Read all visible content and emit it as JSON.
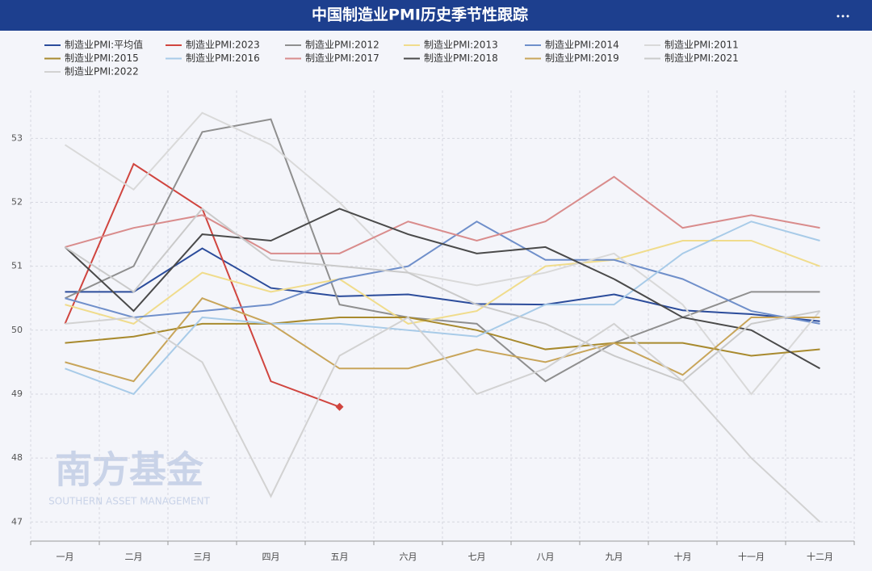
{
  "chart_data": {
    "type": "line",
    "title": "中国制造业PMI历史季节性跟踪",
    "watermark": {
      "name": "南方基金",
      "subtitle": "SOUTHERN ASSET MANAGEMENT"
    },
    "categories": [
      "一月",
      "二月",
      "三月",
      "四月",
      "五月",
      "六月",
      "七月",
      "八月",
      "九月",
      "十月",
      "十一月",
      "十二月"
    ],
    "ylim": [
      46.7,
      53.75
    ],
    "yticks": [
      47,
      48,
      49,
      50,
      51,
      52,
      53
    ],
    "grid": true,
    "series": [
      {
        "name": "制造业PMI:平均值",
        "color": "#2b4c9b",
        "values": [
          50.6,
          50.6,
          51.28,
          50.66,
          50.53,
          50.56,
          50.41,
          50.4,
          50.56,
          50.31,
          50.25,
          50.14
        ]
      },
      {
        "name": "制造业PMI:2023",
        "color": "#d0453f",
        "end_marker": "diamond",
        "values": [
          50.1,
          52.6,
          51.9,
          49.2,
          48.8,
          null,
          null,
          null,
          null,
          null,
          null,
          null
        ]
      },
      {
        "name": "制造业PMI:2012",
        "color": "#8f8f8f",
        "values": [
          50.5,
          51.0,
          53.1,
          53.3,
          50.4,
          50.2,
          50.1,
          49.2,
          49.8,
          50.2,
          50.6,
          50.6
        ]
      },
      {
        "name": "制造业PMI:2013",
        "color": "#f0dc8c",
        "values": [
          50.4,
          50.1,
          50.9,
          50.6,
          50.8,
          50.1,
          50.3,
          51.0,
          51.1,
          51.4,
          51.4,
          51.0
        ]
      },
      {
        "name": "制造业PMI:2014",
        "color": "#6f8fca",
        "values": [
          50.5,
          50.2,
          50.3,
          50.4,
          50.8,
          51.0,
          51.7,
          51.1,
          51.1,
          50.8,
          50.3,
          50.1
        ]
      },
      {
        "name": "制造业PMI:2011",
        "color": "#d9d9d9",
        "values": [
          52.9,
          52.2,
          53.4,
          52.9,
          52.0,
          50.9,
          50.7,
          50.9,
          51.2,
          50.4,
          49.0,
          50.3
        ]
      },
      {
        "name": "制造业PMI:2015",
        "color": "#a88a2e",
        "values": [
          49.8,
          49.9,
          50.1,
          50.1,
          50.2,
          50.2,
          50.0,
          49.7,
          49.8,
          49.8,
          49.6,
          49.7
        ]
      },
      {
        "name": "制造业PMI:2016",
        "color": "#a8cbe8",
        "values": [
          49.4,
          49.0,
          50.2,
          50.1,
          50.1,
          50.0,
          49.9,
          50.4,
          50.4,
          51.2,
          51.7,
          51.4
        ]
      },
      {
        "name": "制造业PMI:2017",
        "color": "#d98c8c",
        "values": [
          51.3,
          51.6,
          51.8,
          51.2,
          51.2,
          51.7,
          51.4,
          51.7,
          52.4,
          51.6,
          51.8,
          51.6
        ]
      },
      {
        "name": "制造业PMI:2018",
        "color": "#4a4a4a",
        "values": [
          51.3,
          50.3,
          51.5,
          51.4,
          51.9,
          51.5,
          51.2,
          51.3,
          50.8,
          50.2,
          50.0,
          49.4
        ]
      },
      {
        "name": "制造业PMI:2019",
        "color": "#c8a55a",
        "values": [
          49.5,
          49.2,
          50.5,
          50.1,
          49.4,
          49.4,
          49.7,
          49.5,
          49.8,
          49.3,
          50.2,
          50.2
        ]
      },
      {
        "name": "制造业PMI:2021",
        "color": "#cacaca",
        "values": [
          51.3,
          50.6,
          51.9,
          51.1,
          51.0,
          50.9,
          50.4,
          50.1,
          49.6,
          49.2,
          50.1,
          50.3
        ]
      },
      {
        "name": "制造业PMI:2022",
        "color": "#d2d2d2",
        "values": [
          50.1,
          50.2,
          49.5,
          47.4,
          49.6,
          50.2,
          49.0,
          49.4,
          50.1,
          49.2,
          48.0,
          47.0
        ]
      }
    ]
  }
}
